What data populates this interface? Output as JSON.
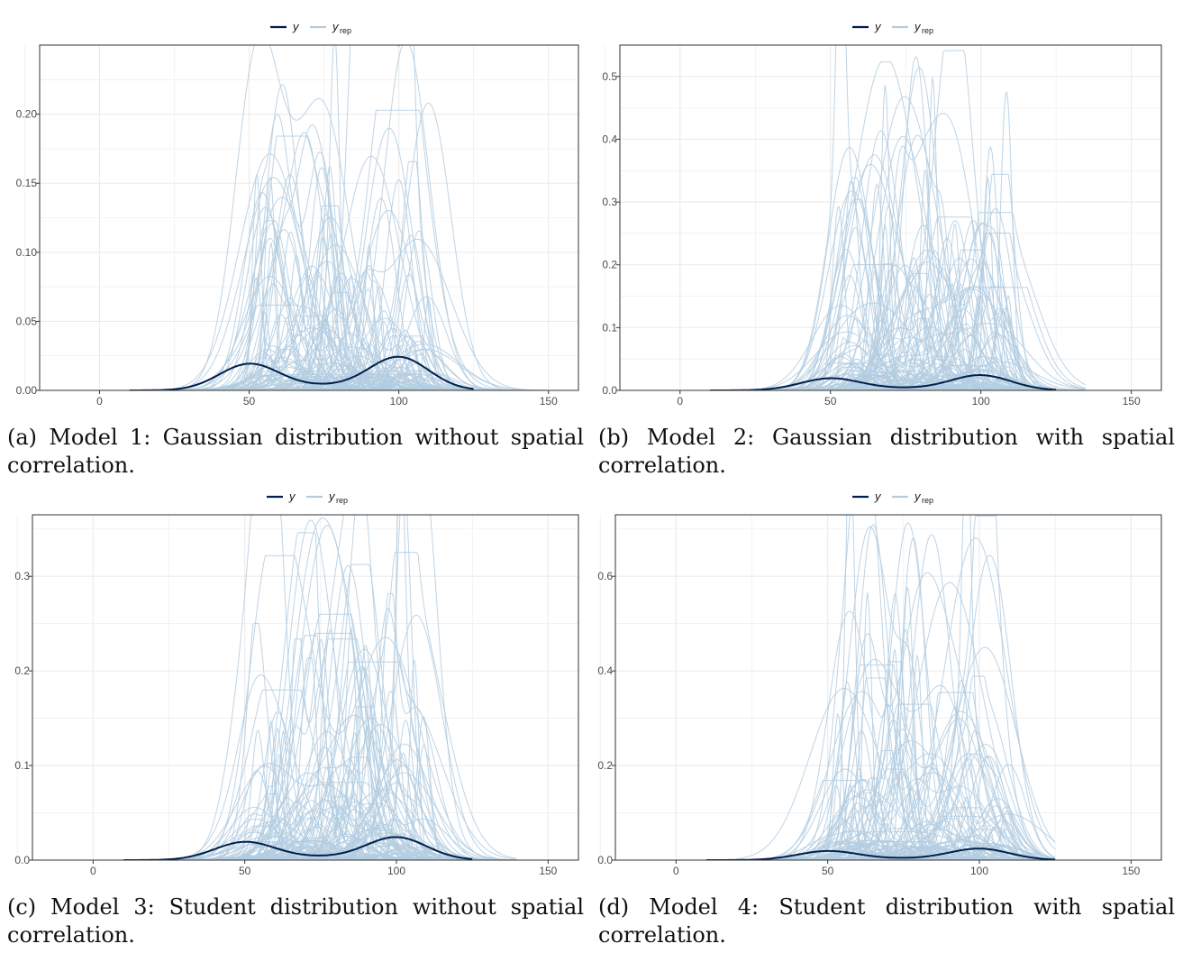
{
  "legend": {
    "y_label": "y",
    "yrep_label": "y",
    "yrep_sub": "rep"
  },
  "colors": {
    "y": "#011f4b",
    "yrep": "#b3cde0",
    "grid": "#ebebeb",
    "panel_border": "#333333"
  },
  "chart_data": [
    {
      "type": "line",
      "caption": "(a) Model 1: Gaussian distribution without spatial correlation.",
      "xlim": [
        -20,
        160
      ],
      "ylim": [
        0,
        0.25
      ],
      "x_ticks": [
        0,
        50,
        100,
        150
      ],
      "y_ticks": [
        0.0,
        0.05,
        0.1,
        0.15,
        0.2
      ],
      "y_tick_labels": [
        "0.00",
        "0.05",
        "0.10",
        "0.15",
        "0.20"
      ],
      "series": [
        {
          "name": "y",
          "components": [
            {
              "mean": 50,
              "sd": 10,
              "peak": 0.019
            },
            {
              "mean": 100,
              "sd": 10,
              "peak": 0.024
            },
            {
              "mean": 75,
              "sd": 12,
              "peak": 0.003
            }
          ]
        },
        {
          "name": "y_rep",
          "replicates": 120,
          "range": [
            15,
            150
          ],
          "max_peak": 0.248
        }
      ]
    },
    {
      "type": "line",
      "caption": "(b) Model 2: Gaussian distribution with spatial correlation.",
      "xlim": [
        -20,
        160
      ],
      "ylim": [
        0,
        0.55
      ],
      "x_ticks": [
        0,
        50,
        100,
        150
      ],
      "y_ticks": [
        0.0,
        0.1,
        0.2,
        0.3,
        0.4,
        0.5
      ],
      "y_tick_labels": [
        "0.0",
        "0.1",
        "0.2",
        "0.3",
        "0.4",
        "0.5"
      ],
      "series": [
        {
          "name": "y",
          "components": [
            {
              "mean": 50,
              "sd": 10,
              "peak": 0.019
            },
            {
              "mean": 100,
              "sd": 10,
              "peak": 0.024
            },
            {
              "mean": 75,
              "sd": 12,
              "peak": 0.003
            }
          ]
        },
        {
          "name": "y_rep",
          "replicates": 120,
          "range": [
            20,
            135
          ],
          "max_peak": 0.535
        }
      ]
    },
    {
      "type": "line",
      "caption": "(c) Model 3: Student distribution without spatial correlation.",
      "xlim": [
        -20,
        160
      ],
      "ylim": [
        0,
        0.365
      ],
      "x_ticks": [
        0,
        50,
        100,
        150
      ],
      "y_ticks": [
        0.0,
        0.1,
        0.2,
        0.3
      ],
      "y_tick_labels": [
        "0.0",
        "0.1",
        "0.2",
        "0.3"
      ],
      "series": [
        {
          "name": "y",
          "components": [
            {
              "mean": 50,
              "sd": 10,
              "peak": 0.019
            },
            {
              "mean": 100,
              "sd": 10,
              "peak": 0.024
            },
            {
              "mean": 75,
              "sd": 12,
              "peak": 0.003
            }
          ]
        },
        {
          "name": "y_rep",
          "replicates": 120,
          "range": [
            5,
            140
          ],
          "max_peak": 0.365
        }
      ]
    },
    {
      "type": "line",
      "caption": "(d) Model 4: Student distribution with spatial correlation.",
      "xlim": [
        -20,
        160
      ],
      "ylim": [
        0,
        0.73
      ],
      "x_ticks": [
        0,
        50,
        100,
        150
      ],
      "y_ticks": [
        0.0,
        0.2,
        0.4,
        0.6
      ],
      "y_tick_labels": [
        "0.0",
        "0.2",
        "0.4",
        "0.6"
      ],
      "series": [
        {
          "name": "y",
          "components": [
            {
              "mean": 50,
              "sd": 10,
              "peak": 0.019
            },
            {
              "mean": 100,
              "sd": 10,
              "peak": 0.024
            },
            {
              "mean": 75,
              "sd": 12,
              "peak": 0.003
            }
          ]
        },
        {
          "name": "y_rep",
          "replicates": 110,
          "range": [
            20,
            125
          ],
          "max_peak": 0.73
        }
      ]
    }
  ]
}
